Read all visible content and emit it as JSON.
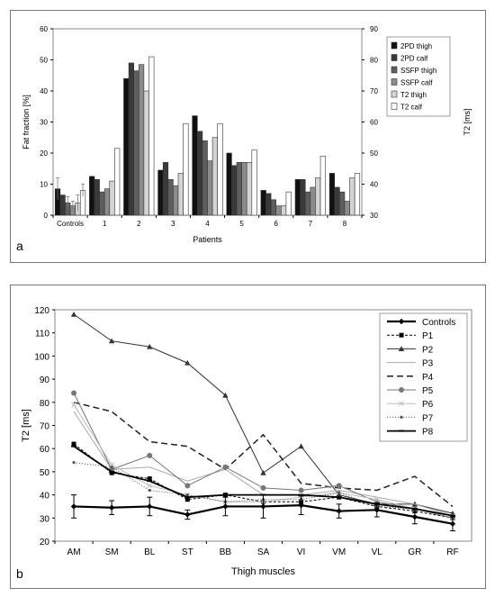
{
  "panels": [
    {
      "letter": "a"
    },
    {
      "letter": "b"
    }
  ],
  "chart_data": [
    {
      "type": "bar",
      "xlabel": "Patients",
      "ylabel": "Fat fraction [%]",
      "y2label": "T2 [ms]",
      "ylim": [
        0,
        60
      ],
      "y2lim": [
        30,
        90
      ],
      "yticks": [
        0,
        10,
        20,
        30,
        40,
        50,
        60
      ],
      "y2ticks": [
        30,
        40,
        50,
        60,
        70,
        80,
        90
      ],
      "categories": [
        "Controls",
        "1",
        "2",
        "3",
        "4",
        "5",
        "6",
        "7",
        "8"
      ],
      "legend_position": "right",
      "series": [
        {
          "name": "2PD thigh",
          "axis": "left",
          "color": "#111111",
          "values": [
            8.5,
            12.5,
            44,
            14.5,
            32,
            20,
            8,
            11.5,
            13.5
          ]
        },
        {
          "name": "2PD calf",
          "axis": "left",
          "color": "#3a3a3a",
          "values": [
            6.5,
            11.5,
            49,
            17,
            27,
            16,
            7,
            11.5,
            9
          ]
        },
        {
          "name": "SSFP thigh",
          "axis": "left",
          "color": "#5e5e5e",
          "values": [
            4,
            7.5,
            46.5,
            11.5,
            24,
            17,
            5,
            7.5,
            7.5
          ]
        },
        {
          "name": "SSFP calf",
          "axis": "left",
          "color": "#8c8c8c",
          "values": [
            3,
            8.5,
            48.5,
            9.5,
            17.5,
            17,
            3,
            9,
            4.5
          ]
        },
        {
          "name": "T2 thigh",
          "axis": "right",
          "color": "#d4d4d4",
          "values": [
            34,
            41,
            70,
            43.5,
            55,
            47,
            33,
            42,
            42
          ]
        },
        {
          "name": "T2 calf",
          "axis": "right",
          "color": "#ffffff",
          "values": [
            38,
            51.5,
            81,
            59.5,
            59.5,
            51,
            37.5,
            49,
            43.5
          ]
        }
      ]
    },
    {
      "type": "line",
      "xlabel": "Thigh muscles",
      "ylabel": "T2 [ms]",
      "ylim": [
        20,
        120
      ],
      "yticks": [
        20,
        30,
        40,
        50,
        60,
        70,
        80,
        90,
        100,
        110,
        120
      ],
      "categories": [
        "AM",
        "SM",
        "BL",
        "ST",
        "BB",
        "SA",
        "VI",
        "VM",
        "VL",
        "GR",
        "RF"
      ],
      "legend_position": "top-right",
      "series": [
        {
          "name": "Controls",
          "color": "#000000",
          "dash": "",
          "width": 2.2,
          "marker": "diamond",
          "values": [
            35,
            34.5,
            35,
            31.5,
            35,
            35,
            35.5,
            33,
            33.5,
            30.5,
            27.5
          ],
          "error": [
            5,
            3,
            4,
            2,
            4,
            5,
            4,
            3,
            3,
            3,
            3
          ]
        },
        {
          "name": "P1",
          "color": "#000000",
          "dash": "3,2",
          "width": 1,
          "marker": "square",
          "values": [
            62,
            49.5,
            47,
            38,
            40,
            37,
            37,
            39,
            35,
            33,
            30
          ]
        },
        {
          "name": "P2",
          "color": "#333333",
          "dash": "",
          "width": 1,
          "marker": "triangle",
          "values": [
            118,
            106.5,
            104,
            97,
            83,
            49.5,
            61,
            40,
            36,
            36,
            32
          ]
        },
        {
          "name": "P3",
          "color": "#aaaaaa",
          "dash": "",
          "width": 1,
          "marker": "none",
          "values": [
            76,
            51,
            52,
            46,
            51,
            40,
            40,
            42,
            39,
            36,
            31
          ]
        },
        {
          "name": "P4",
          "color": "#222222",
          "dash": "7,4",
          "width": 1.5,
          "marker": "none",
          "values": [
            80,
            76,
            63,
            61,
            51,
            66,
            45,
            43,
            42,
            48,
            35
          ]
        },
        {
          "name": "P5",
          "color": "#777777",
          "dash": "",
          "width": 1,
          "marker": "circle",
          "values": [
            84,
            51,
            57,
            44,
            52,
            43,
            42,
            44,
            37,
            34,
            30
          ]
        },
        {
          "name": "P6",
          "color": "#bbbbbb",
          "dash": "",
          "width": 1,
          "marker": "cross",
          "values": [
            79,
            53,
            44,
            40,
            37,
            37,
            39,
            41,
            38,
            34,
            31
          ]
        },
        {
          "name": "P7",
          "color": "#555555",
          "dash": "1,2",
          "width": 1,
          "marker": "star",
          "values": [
            54,
            52,
            42,
            40,
            37,
            38,
            38,
            41,
            35,
            34,
            30
          ]
        },
        {
          "name": "P8",
          "color": "#000000",
          "dash": "",
          "width": 1.8,
          "marker": "dash",
          "values": [
            61,
            50,
            46,
            39,
            40,
            40,
            40,
            39,
            36,
            34,
            31
          ]
        }
      ]
    }
  ]
}
